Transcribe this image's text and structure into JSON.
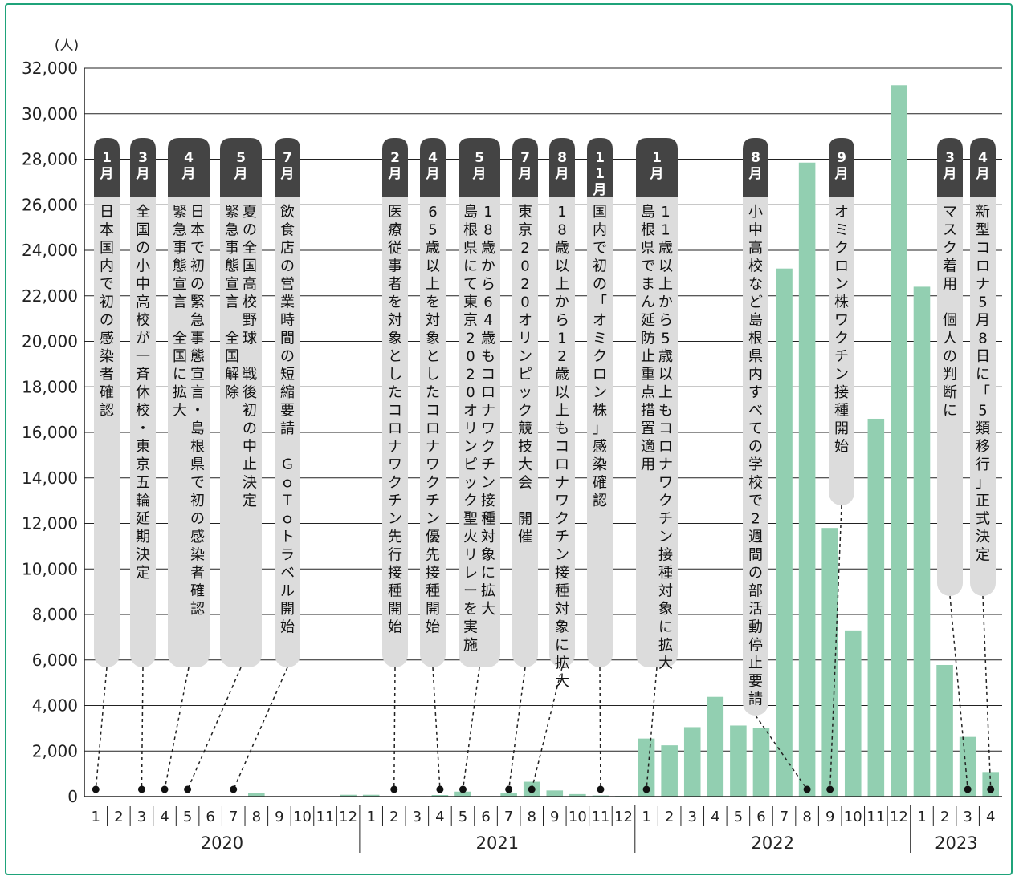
{
  "chart_data": {
    "type": "bar",
    "unit_label": "(人)",
    "ylim": [
      0,
      32000
    ],
    "yticks": [
      0,
      2000,
      4000,
      6000,
      8000,
      10000,
      12000,
      14000,
      16000,
      18000,
      20000,
      22000,
      24000,
      26000,
      28000,
      30000,
      32000
    ],
    "ytick_labels": [
      "0",
      "2,000",
      "4,000",
      "6,000",
      "8,000",
      "10,000",
      "12,000",
      "14,000",
      "16,000",
      "18,000",
      "20,000",
      "22,000",
      "24,000",
      "26,000",
      "28,000",
      "30,000",
      "32,000"
    ],
    "grid": true,
    "bar_color": "#92cfb1",
    "years": [
      {
        "label": "2020",
        "months": [
          "1",
          "2",
          "3",
          "4",
          "5",
          "6",
          "7",
          "8",
          "9",
          "10",
          "11",
          "12"
        ]
      },
      {
        "label": "2021",
        "months": [
          "1",
          "2",
          "3",
          "4",
          "5",
          "6",
          "7",
          "8",
          "9",
          "10",
          "11",
          "12"
        ]
      },
      {
        "label": "2022",
        "months": [
          "1",
          "2",
          "3",
          "4",
          "5",
          "6",
          "7",
          "8",
          "9",
          "10",
          "11",
          "12"
        ]
      },
      {
        "label": "2023",
        "months": [
          "1",
          "2",
          "3",
          "4"
        ]
      }
    ],
    "values": [
      0,
      0,
      0,
      0,
      0,
      0,
      0,
      150,
      0,
      0,
      0,
      80,
      80,
      0,
      20,
      70,
      220,
      20,
      140,
      650,
      270,
      110,
      50,
      30,
      2550,
      2250,
      3050,
      4380,
      3120,
      3000,
      23200,
      27850,
      11800,
      7300,
      16600,
      31250,
      22400,
      5780,
      2620,
      1080
    ],
    "annotations": [
      {
        "month": "1月",
        "text": "日本国内で初の感染者確認",
        "index": 0
      },
      {
        "month": "3月",
        "text": "全国の小中高校が一斉休校・東京五輪延期決定",
        "index": 2
      },
      {
        "month": "4月",
        "text": "日本で初の緊急事態宣言・島根県で初の感染者確認\n緊急事態宣言　全国に拡大",
        "index": 3
      },
      {
        "month": "5月",
        "text": "夏の全国高校野球　戦後初の中止決定\n緊急事態宣言　全国解除",
        "index": 4
      },
      {
        "month": "7月",
        "text": "飲食店の営業時間の短縮要請　ＧｏＴｏトラベル開始",
        "index": 6
      },
      {
        "month": "2月",
        "text": "医療従事者を対象としたコロナワクチン先行接種開始",
        "index": 13
      },
      {
        "month": "4月",
        "text": "65歳以上を対象としたコロナワクチン優先接種開始",
        "index": 15
      },
      {
        "month": "5月",
        "text": "18歳から64歳もコロナワクチン接種対象に拡大\n島根県にて東京2020オリンピック聖火リレーを実施",
        "index": 16
      },
      {
        "month": "7月",
        "text": "東京2020オリンピック競技大会　開催",
        "index": 18
      },
      {
        "month": "8月",
        "text": "18歳以上から12歳以上もコロナワクチン接種対象に拡大",
        "index": 19
      },
      {
        "month": "11月",
        "text": "国内で初の「オミクロン株」感染確認",
        "index": 22
      },
      {
        "month": "1月",
        "text": "11歳以上から5歳以上もコロナワクチン接種対象に拡大\n島根県でまん延防止重点措置適用",
        "index": 24
      },
      {
        "month": "8月",
        "text": "小中高校など島根県内すべての学校で2週間の部活動停止要請",
        "index": 31
      },
      {
        "month": "9月",
        "text": "オミクロン株ワクチン接種開始",
        "index": 32
      },
      {
        "month": "3月",
        "text": "マスク着用　個人の判断に",
        "index": 38
      },
      {
        "month": "4月",
        "text": "新型コロナ5月8日に「5類移行」正式決定",
        "index": 39
      }
    ]
  }
}
